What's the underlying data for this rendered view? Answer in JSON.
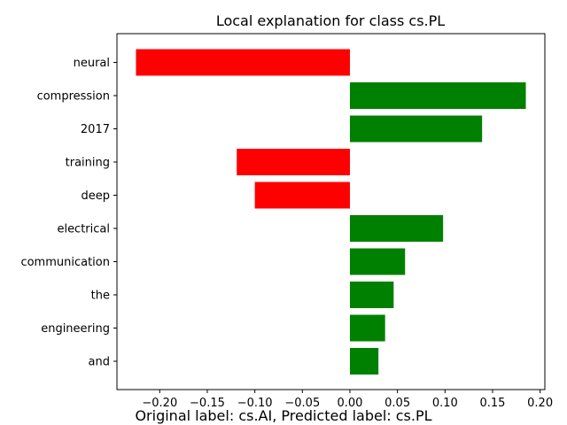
{
  "chart_data": {
    "type": "bar",
    "orientation": "horizontal",
    "title": "Local explanation for class cs.PL",
    "xlabel": "",
    "ylabel": "",
    "categories": [
      "neural",
      "compression",
      "2017",
      "training",
      "deep",
      "electrical",
      "communication",
      "the",
      "engineering",
      "and"
    ],
    "values": [
      -0.225,
      0.185,
      0.139,
      -0.119,
      -0.1,
      0.098,
      0.058,
      0.046,
      0.037,
      0.03
    ],
    "xlim": [
      -0.245,
      0.205
    ],
    "xticks": [
      -0.2,
      -0.15,
      -0.1,
      -0.05,
      0.0,
      0.05,
      0.1,
      0.15,
      0.2
    ],
    "xtick_labels": [
      "−0.20",
      "−0.15",
      "−0.10",
      "−0.05",
      "0.00",
      "0.05",
      "0.10",
      "0.15",
      "0.20"
    ],
    "grid": false,
    "legend": "none",
    "colors": {
      "positive": "#008000",
      "negative": "#ff0000"
    }
  },
  "caption": "Original label: cs.AI, Predicted label: cs.PL"
}
